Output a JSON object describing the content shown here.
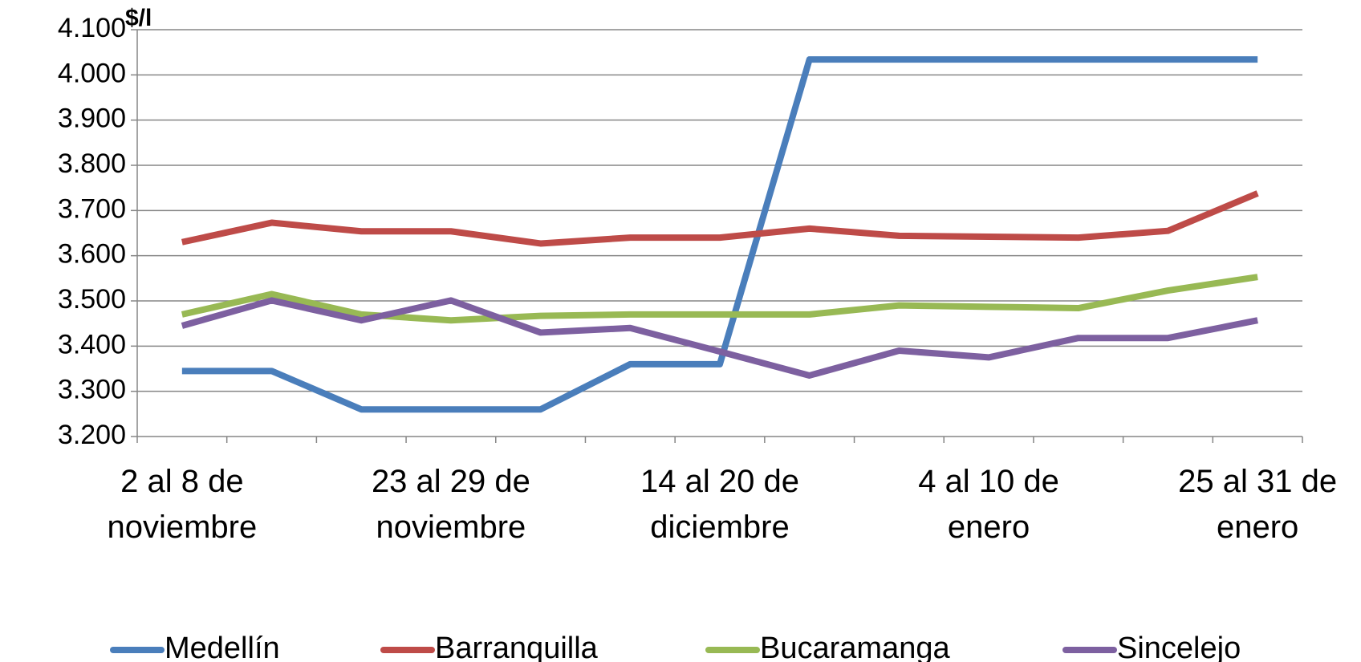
{
  "chart_data": {
    "type": "line",
    "y_label": "$/l",
    "categories": [
      "2 al 8 de noviembre",
      null,
      null,
      "23 al 29 de noviembre",
      null,
      null,
      "14 al 20 de diciembre",
      null,
      null,
      "4 al 10 de enero",
      null,
      null,
      "25 al 31 de enero"
    ],
    "series": [
      {
        "name": "Medellín",
        "color": "#4a7ebb",
        "values": [
          3345,
          3345,
          3260,
          3260,
          3260,
          3360,
          3360,
          4034,
          4034,
          4034,
          4034,
          4034,
          4034
        ]
      },
      {
        "name": "Barranquilla",
        "color": "#be4b48",
        "values": [
          3630,
          3673,
          3654,
          3654,
          3627,
          3640,
          3640,
          3660,
          3644,
          3642,
          3640,
          3655,
          3738
        ]
      },
      {
        "name": "Bucaramanga",
        "color": "#98b954",
        "values": [
          3470,
          3515,
          3470,
          3457,
          3467,
          3470,
          3470,
          3470,
          3490,
          3487,
          3484,
          3523,
          3553
        ]
      },
      {
        "name": "Sincelejo",
        "color": "#7d60a0",
        "values": [
          3445,
          3501,
          3457,
          3501,
          3430,
          3440,
          3388,
          3335,
          3390,
          3375,
          3418,
          3418,
          3457
        ]
      }
    ],
    "ylim": [
      3200,
      4100
    ],
    "yticks": [
      {
        "value": 3200,
        "label": "3.200"
      },
      {
        "value": 3300,
        "label": "3.300"
      },
      {
        "value": 3400,
        "label": "3.400"
      },
      {
        "value": 3500,
        "label": "3.500"
      },
      {
        "value": 3600,
        "label": "3.600"
      },
      {
        "value": 3700,
        "label": "3.700"
      },
      {
        "value": 3800,
        "label": "3.800"
      },
      {
        "value": 3900,
        "label": "3.900"
      },
      {
        "value": 4000,
        "label": "4.000"
      },
      {
        "value": 4100,
        "label": "4.100"
      }
    ],
    "grid": true,
    "legend": "bottom"
  }
}
